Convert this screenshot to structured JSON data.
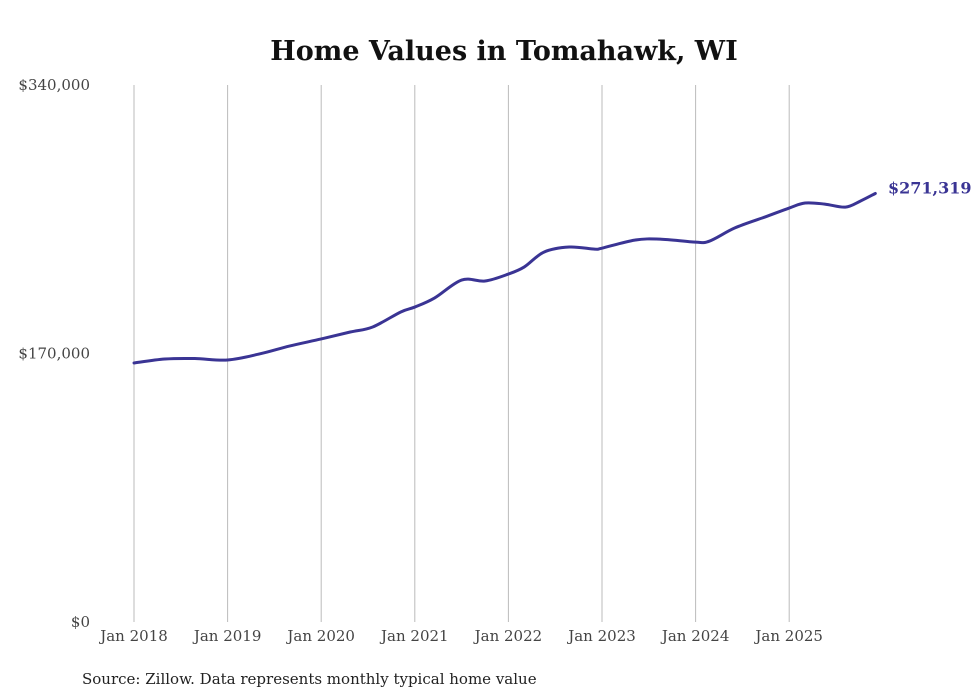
{
  "chart_data": {
    "type": "line",
    "title": "Home Values in Tomahawk, WI",
    "xlabel": "",
    "ylabel": "",
    "ylim": [
      0,
      340000
    ],
    "xlim": [
      2018.0,
      2025.92
    ],
    "grid": "vertical",
    "y_ticks": [
      {
        "value": 0,
        "label": "$0"
      },
      {
        "value": 170000,
        "label": "$170,000"
      },
      {
        "value": 340000,
        "label": "$340,000"
      }
    ],
    "x_ticks": [
      {
        "value": 2018,
        "label": "Jan 2018"
      },
      {
        "value": 2019,
        "label": "Jan 2019"
      },
      {
        "value": 2020,
        "label": "Jan 2020"
      },
      {
        "value": 2021,
        "label": "Jan 2021"
      },
      {
        "value": 2022,
        "label": "Jan 2022"
      },
      {
        "value": 2023,
        "label": "Jan 2023"
      },
      {
        "value": 2024,
        "label": "Jan 2024"
      },
      {
        "value": 2025,
        "label": "Jan 2025"
      }
    ],
    "series": [
      {
        "name": "Typical home value",
        "color": "#3a3494",
        "x": [
          2018.0,
          2018.33,
          2018.65,
          2019.0,
          2019.34,
          2019.66,
          2020.0,
          2020.31,
          2020.55,
          2020.85,
          2021.0,
          2021.21,
          2021.5,
          2021.75,
          2022.0,
          2022.17,
          2022.38,
          2022.65,
          2022.92,
          2023.0,
          2023.35,
          2023.62,
          2024.0,
          2024.15,
          2024.42,
          2024.74,
          2025.0,
          2025.17,
          2025.38,
          2025.6,
          2025.76,
          2025.92
        ],
        "values": [
          164000,
          166500,
          166800,
          165900,
          169700,
          174700,
          179200,
          183600,
          186800,
          196300,
          199400,
          205100,
          216500,
          215900,
          220300,
          224800,
          234200,
          237400,
          236100,
          236700,
          241800,
          242400,
          240500,
          241200,
          249500,
          256400,
          262100,
          265300,
          264600,
          262700,
          266500,
          271319
        ]
      }
    ],
    "end_label": "$271,319",
    "source": "Source: Zillow. Data represents monthly typical home value"
  }
}
